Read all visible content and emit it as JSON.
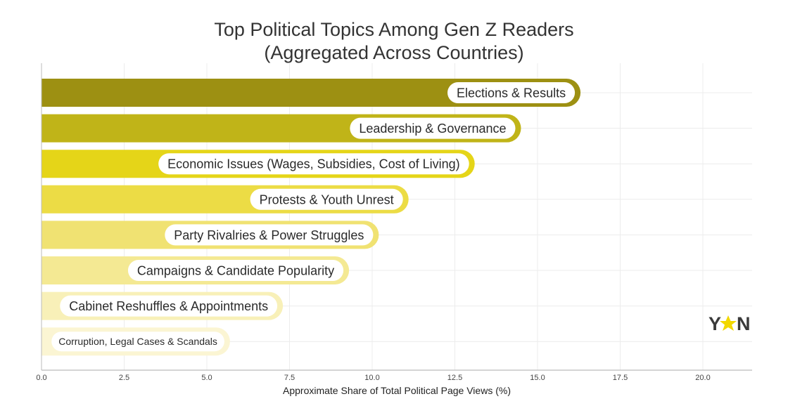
{
  "chart_data": {
    "type": "bar",
    "orientation": "horizontal",
    "title": [
      "Top Political Topics Among Gen Z Readers",
      "(Aggregated Across Countries)"
    ],
    "xlabel": "Approximate Share of Total Political Page Views (%)",
    "ylabel": "",
    "xlim": [
      0,
      21.5
    ],
    "xticks": [
      "0.0",
      "2.5",
      "5.0",
      "7.5",
      "10.0",
      "12.5",
      "15.0",
      "17.5",
      "20.0"
    ],
    "grid": true,
    "categories": [
      "Elections & Results",
      "Leadership & Governance",
      "Economic Issues (Wages, Subsidies, Cost of Living)",
      "Protests & Youth Unrest",
      "Party Rivalries & Power Struggles",
      "Campaigns & Candidate Popularity",
      "Cabinet Reshuffles & Appointments",
      "Corruption, Legal Cases & Scandals"
    ],
    "values": [
      16.3,
      14.5,
      13.1,
      11.1,
      10.2,
      9.3,
      7.3,
      5.7
    ],
    "colors": [
      "#9d9012",
      "#c0b418",
      "#e5d518",
      "#ecdc45",
      "#f0e272",
      "#f4e993",
      "#f8f0b8",
      "#fbf5d3"
    ],
    "logo": "YEN"
  }
}
